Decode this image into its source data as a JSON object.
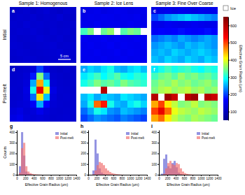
{
  "figure": {
    "colorbar": {
      "label": "Effective Grain Radius (µm)",
      "range": [
        50,
        650
      ],
      "ticks": [
        100,
        200,
        300,
        400,
        500,
        600
      ]
    },
    "ice_label": "Ice",
    "scale_bar": "5 cm"
  },
  "chart_data": [
    {
      "type": "heatmap",
      "panel": "a",
      "title": "Sample 1: Homogenous",
      "ylabel": "Initial",
      "cells": [
        [
          110,
          115,
          120,
          112,
          118,
          125,
          115,
          110,
          120,
          115
        ],
        [
          115,
          120,
          118,
          122,
          115,
          120,
          118,
          125,
          115,
          112
        ],
        [
          120,
          118,
          125,
          120,
          122,
          118,
          120,
          115,
          118,
          120
        ],
        [
          118,
          122,
          120,
          125,
          120,
          115,
          122,
          118,
          120,
          115
        ],
        [
          120,
          115,
          118,
          120,
          125,
          120,
          118,
          122,
          115,
          118
        ],
        [
          122,
          120,
          115,
          118,
          120,
          122,
          125,
          118,
          120,
          122
        ],
        [
          118,
          122,
          120,
          115,
          118,
          120,
          122,
          125,
          118,
          120
        ],
        [
          115,
          118,
          122,
          120,
          115,
          118,
          120,
          122,
          125,
          118
        ]
      ]
    },
    {
      "type": "heatmap",
      "panel": "b",
      "title": "Sample 2: Ice Lens",
      "cells": [
        [
          140,
          145,
          150,
          140,
          145,
          150,
          148,
          142,
          145,
          150
        ],
        [
          145,
          150,
          148,
          152,
          150,
          145,
          150,
          148,
          152,
          145
        ],
        [
          150,
          148,
          155,
          150,
          152,
          150,
          148,
          155,
          150,
          148
        ],
        [
          320,
          350,
          null,
          340,
          360,
          null,
          330,
          350,
          340,
          null
        ],
        [
          155,
          150,
          152,
          158,
          150,
          155,
          152,
          150,
          155,
          152
        ],
        [
          150,
          155,
          150,
          152,
          158,
          150,
          155,
          152,
          150,
          155
        ],
        [
          152,
          150,
          155,
          150,
          152,
          158,
          150,
          155,
          152,
          150
        ],
        [
          150,
          152,
          150,
          155,
          150,
          152,
          155,
          150,
          152,
          155
        ]
      ]
    },
    {
      "type": "heatmap",
      "panel": "c",
      "title": "Sample 3: Fine Over Coarse",
      "cells": [
        [
          140,
          145,
          150,
          140,
          150,
          145,
          140,
          150,
          145,
          150
        ],
        [
          200,
          220,
          240,
          250,
          260,
          270,
          260,
          250,
          240,
          230
        ],
        [
          150,
          145,
          155,
          150,
          145,
          150,
          155,
          150,
          145,
          150
        ],
        [
          160,
          170,
          165,
          170,
          175,
          170,
          165,
          170,
          175,
          170
        ],
        [
          220,
          230,
          240,
          230,
          250,
          240,
          230,
          240,
          250,
          240
        ],
        [
          240,
          250,
          260,
          250,
          240,
          260,
          250,
          260,
          250,
          240
        ],
        [
          250,
          260,
          250,
          270,
          260,
          250,
          260,
          270,
          260,
          250
        ],
        [
          260,
          250,
          270,
          260,
          250,
          270,
          260,
          250,
          270,
          260
        ]
      ]
    },
    {
      "type": "heatmap",
      "panel": "d",
      "ylabel": "Post-melt",
      "cells": [
        [
          110,
          115,
          120,
          130,
          200,
          140,
          115,
          110,
          115,
          112
        ],
        [
          115,
          118,
          125,
          180,
          350,
          220,
          120,
          115,
          112,
          115
        ],
        [
          118,
          120,
          130,
          250,
          450,
          300,
          125,
          118,
          115,
          118
        ],
        [
          120,
          118,
          140,
          300,
          550,
          400,
          140,
          120,
          118,
          115
        ],
        [
          118,
          120,
          135,
          220,
          420,
          260,
          130,
          118,
          120,
          118
        ],
        [
          120,
          125,
          130,
          160,
          250,
          170,
          125,
          120,
          118,
          120
        ],
        [
          130,
          140,
          125,
          130,
          150,
          130,
          120,
          118,
          120,
          122
        ],
        [
          140,
          150,
          130,
          125,
          130,
          125,
          118,
          120,
          122,
          120
        ]
      ]
    },
    {
      "type": "heatmap",
      "panel": "e",
      "cells": [
        [
          250,
          270,
          260,
          280,
          300,
          260,
          250,
          270,
          280,
          260
        ],
        [
          280,
          300,
          320,
          290,
          310,
          330,
          300,
          290,
          310,
          300
        ],
        [
          300,
          320,
          350,
          330,
          340,
          320,
          350,
          330,
          320,
          310
        ],
        [
          null,
          null,
          null,
          600,
          null,
          null,
          null,
          null,
          null,
          null
        ],
        [
          260,
          280,
          250,
          270,
          260,
          250,
          280,
          270,
          260,
          250
        ],
        [
          250,
          300,
          480,
          520,
          300,
          260,
          250,
          280,
          300,
          270
        ],
        [
          220,
          250,
          300,
          280,
          240,
          230,
          260,
          250,
          240,
          230
        ],
        [
          200,
          220,
          240,
          230,
          220,
          210,
          230,
          220,
          210,
          200
        ]
      ]
    },
    {
      "type": "heatmap",
      "panel": "f",
      "cells": [
        [
          280,
          300,
          320,
          300,
          310,
          320,
          300,
          290,
          310,
          300
        ],
        [
          320,
          340,
          350,
          330,
          360,
          340,
          350,
          330,
          340,
          320
        ],
        [
          340,
          360,
          350,
          370,
          350,
          360,
          340,
          350,
          360,
          340
        ],
        [
          350,
          370,
          380,
          360,
          370,
          380,
          360,
          370,
          350,
          360
        ],
        [
          600,
          null,
          620,
          580,
          null,
          600,
          620,
          null,
          600,
          580
        ],
        [
          450,
          500,
          420,
          380,
          350,
          360,
          380,
          350,
          360,
          350
        ],
        [
          500,
          550,
          480,
          400,
          380,
          370,
          360,
          380,
          370,
          360
        ],
        [
          450,
          480,
          420,
          380,
          360,
          350,
          370,
          360,
          350,
          340
        ]
      ]
    },
    {
      "type": "histogram",
      "panel": "g",
      "xlabel": "Effective Grain Radius (µm)",
      "ylabel": "Counts",
      "bins": [
        0,
        50,
        100,
        150,
        200,
        250,
        300,
        350,
        400,
        450,
        500,
        550,
        600,
        650,
        700,
        750,
        800,
        850,
        900,
        950,
        1000,
        1050,
        1100,
        1150,
        1200,
        1250,
        1300,
        1350,
        1400
      ],
      "series": [
        {
          "name": "Initial",
          "color": "#5a5ad2",
          "values": [
            0,
            80,
            400,
            180,
            30,
            10,
            5,
            0,
            0,
            0,
            0,
            0,
            0,
            0,
            0,
            0,
            0,
            0,
            0,
            0,
            0,
            0,
            0,
            0,
            0,
            0,
            0,
            0
          ]
        },
        {
          "name": "Post-melt",
          "color": "#f06a6a",
          "values": [
            0,
            20,
            250,
            300,
            80,
            30,
            15,
            8,
            5,
            3,
            2,
            1,
            0,
            0,
            0,
            0,
            0,
            0,
            0,
            0,
            0,
            0,
            0,
            0,
            0,
            0,
            0,
            0
          ]
        }
      ],
      "xlim": [
        0,
        1400
      ],
      "ylim": [
        0,
        420
      ],
      "xticks": [
        0,
        200,
        400,
        600,
        800,
        1000,
        1200,
        1400
      ],
      "yticks": [
        0,
        100,
        200,
        300,
        400
      ],
      "legend": "upper right"
    },
    {
      "type": "histogram",
      "panel": "h",
      "xlabel": "Effective Grain Radius (µm)",
      "bins": [
        0,
        50,
        100,
        150,
        200,
        250,
        300,
        350,
        400,
        450,
        500,
        550,
        600,
        650,
        700,
        750,
        800,
        850,
        900,
        950,
        1000,
        1050,
        1100,
        1150,
        1200,
        1250,
        1300,
        1350,
        1400
      ],
      "series": [
        {
          "name": "Initial",
          "color": "#5a5ad2",
          "values": [
            0,
            0,
            40,
            330,
            200,
            60,
            20,
            8,
            3,
            1,
            0,
            0,
            0,
            0,
            0,
            0,
            0,
            0,
            0,
            0,
            0,
            0,
            0,
            0,
            0,
            0,
            0,
            0
          ]
        },
        {
          "name": "Post-melt",
          "color": "#f06a6a",
          "values": [
            0,
            0,
            5,
            40,
            90,
            120,
            110,
            90,
            60,
            40,
            25,
            15,
            10,
            6,
            4,
            2,
            1,
            0,
            0,
            0,
            0,
            0,
            0,
            0,
            0,
            0,
            0,
            0
          ]
        }
      ],
      "xlim": [
        0,
        1400
      ],
      "ylim": [
        0,
        420
      ],
      "xticks": [
        0,
        200,
        400,
        600,
        800,
        1000,
        1200,
        1400
      ],
      "yticks": [
        0,
        100,
        200,
        300,
        400
      ],
      "legend": "upper right"
    },
    {
      "type": "histogram",
      "panel": "i",
      "xlabel": "Effective Grain Radius (µm)",
      "bins": [
        0,
        50,
        100,
        150,
        200,
        250,
        300,
        350,
        400,
        450,
        500,
        550,
        600,
        650,
        700,
        750,
        800,
        850,
        900,
        950,
        1000,
        1050,
        1100,
        1150,
        1200,
        1250,
        1300,
        1350,
        1400
      ],
      "series": [
        {
          "name": "Initial",
          "color": "#5a5ad2",
          "values": [
            0,
            10,
            150,
            190,
            80,
            60,
            110,
            130,
            70,
            20,
            5,
            1,
            0,
            0,
            0,
            0,
            0,
            0,
            0,
            0,
            0,
            0,
            0,
            0,
            0,
            0,
            0,
            0
          ]
        },
        {
          "name": "Post-melt",
          "color": "#f06a6a",
          "values": [
            0,
            0,
            10,
            60,
            110,
            130,
            100,
            90,
            110,
            100,
            60,
            30,
            15,
            8,
            4,
            2,
            1,
            0,
            0,
            0,
            0,
            0,
            0,
            0,
            0,
            0,
            0,
            0
          ]
        }
      ],
      "xlim": [
        0,
        1400
      ],
      "ylim": [
        0,
        420
      ],
      "xticks": [
        0,
        200,
        400,
        600,
        800,
        1000,
        1200,
        1400
      ],
      "yticks": [
        0,
        100,
        200,
        300,
        400
      ],
      "legend": "upper right"
    }
  ]
}
